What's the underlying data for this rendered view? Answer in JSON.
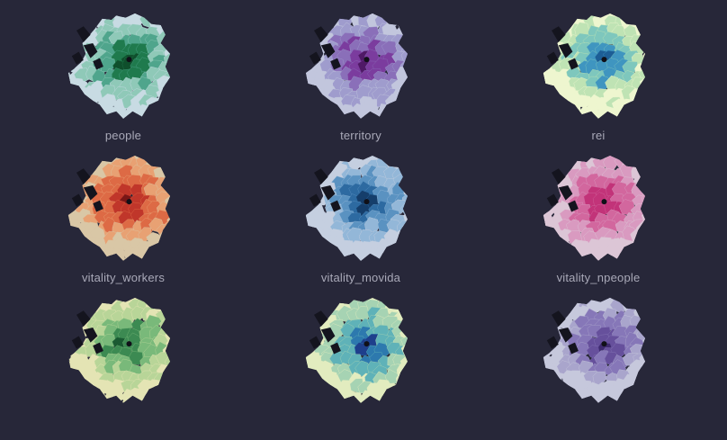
{
  "maps": [
    {
      "label": "people",
      "palette": [
        "#c8dbe3",
        "#8fc9b8",
        "#4fa58c",
        "#1f7a4d",
        "#0f4f2c"
      ],
      "icon": "city-map-icon"
    },
    {
      "label": "territory",
      "palette": [
        "#c2c6dd",
        "#9f9ccd",
        "#8a6fb9",
        "#7b3c9e",
        "#4f1966"
      ],
      "icon": "city-map-icon"
    },
    {
      "label": "rei",
      "palette": [
        "#eef6cf",
        "#bfe3b4",
        "#7ec7bd",
        "#3f95c0",
        "#1d5e96"
      ],
      "icon": "city-map-icon"
    },
    {
      "label": "vitality_workers",
      "palette": [
        "#d9c7a6",
        "#e8a173",
        "#dd6a45",
        "#c0362a",
        "#7a1616"
      ],
      "icon": "city-map-icon"
    },
    {
      "label": "vitality_movida",
      "palette": [
        "#c5cfe0",
        "#93b7d8",
        "#5a92c1",
        "#2d6aa1",
        "#153e6b"
      ],
      "icon": "city-map-icon"
    },
    {
      "label": "vitality_npeople",
      "palette": [
        "#dcc6d6",
        "#d99ac0",
        "#d2679e",
        "#c23379",
        "#8a1550"
      ],
      "icon": "city-map-icon"
    },
    {
      "label": "",
      "palette": [
        "#e4e4b4",
        "#b8d598",
        "#79b97a",
        "#3c8a52",
        "#1a5a32"
      ],
      "icon": "city-map-icon"
    },
    {
      "label": "",
      "palette": [
        "#e2ecbf",
        "#a6d3b3",
        "#5fb2b8",
        "#2d79ae",
        "#1e3f8c"
      ],
      "icon": "city-map-icon"
    },
    {
      "label": "",
      "palette": [
        "#c6c8dc",
        "#a9a5cc",
        "#8677b8",
        "#66509c",
        "#3e2a70"
      ],
      "icon": "city-map-icon"
    }
  ],
  "colors": {
    "background": "#272739",
    "label": "#a9a9b8",
    "lakes": "#14141e"
  }
}
